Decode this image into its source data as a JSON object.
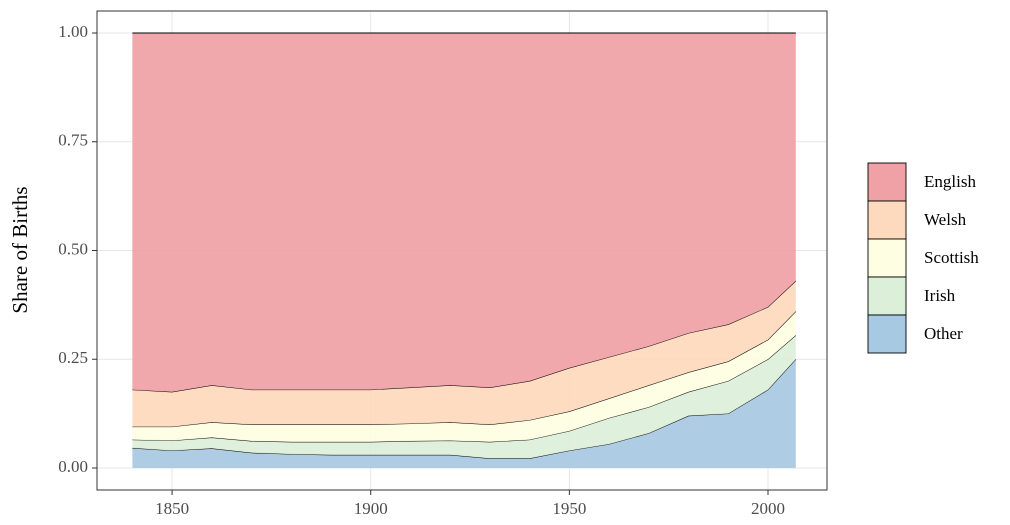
{
  "chart_data": {
    "type": "stacked_area",
    "y_label": "Share of Births",
    "x": [
      1840,
      1850,
      1860,
      1870,
      1880,
      1890,
      1900,
      1910,
      1920,
      1930,
      1940,
      1950,
      1960,
      1970,
      1980,
      1990,
      2000,
      2007
    ],
    "series": [
      {
        "name": "English",
        "color": "#f0a1a5",
        "values": [
          0.82,
          0.825,
          0.81,
          0.82,
          0.82,
          0.82,
          0.82,
          0.815,
          0.81,
          0.815,
          0.8,
          0.77,
          0.745,
          0.72,
          0.69,
          0.67,
          0.63,
          0.57
        ]
      },
      {
        "name": "Welsh",
        "color": "#fdd9bd",
        "values": [
          0.085,
          0.08,
          0.085,
          0.08,
          0.08,
          0.08,
          0.08,
          0.083,
          0.085,
          0.085,
          0.09,
          0.1,
          0.095,
          0.09,
          0.09,
          0.085,
          0.075,
          0.07
        ]
      },
      {
        "name": "Scottish",
        "color": "#fefee2",
        "values": [
          0.03,
          0.032,
          0.035,
          0.038,
          0.04,
          0.04,
          0.04,
          0.04,
          0.042,
          0.04,
          0.045,
          0.045,
          0.045,
          0.05,
          0.045,
          0.045,
          0.045,
          0.055
        ]
      },
      {
        "name": "Irish",
        "color": "#dcefd9",
        "values": [
          0.019,
          0.023,
          0.025,
          0.027,
          0.028,
          0.03,
          0.03,
          0.032,
          0.033,
          0.038,
          0.043,
          0.045,
          0.06,
          0.06,
          0.055,
          0.075,
          0.07,
          0.055
        ]
      },
      {
        "name": "Other",
        "color": "#a7c9e2",
        "values": [
          0.046,
          0.04,
          0.045,
          0.035,
          0.032,
          0.03,
          0.03,
          0.03,
          0.03,
          0.022,
          0.022,
          0.04,
          0.055,
          0.08,
          0.12,
          0.125,
          0.18,
          0.25
        ]
      }
    ],
    "xlim": [
      1831.1,
      2014.85
    ],
    "xticks": [
      1850,
      1900,
      1950,
      2000
    ],
    "ylim": [
      -0.0506,
      1.0506
    ],
    "yticks": [
      {
        "value": 0,
        "label": "0.00"
      },
      {
        "value": 0.25,
        "label": "0.25"
      },
      {
        "value": 0.5,
        "label": "0.50"
      },
      {
        "value": 0.75,
        "label": "0.75"
      },
      {
        "value": 1,
        "label": "1.00"
      }
    ],
    "grid": true
  }
}
